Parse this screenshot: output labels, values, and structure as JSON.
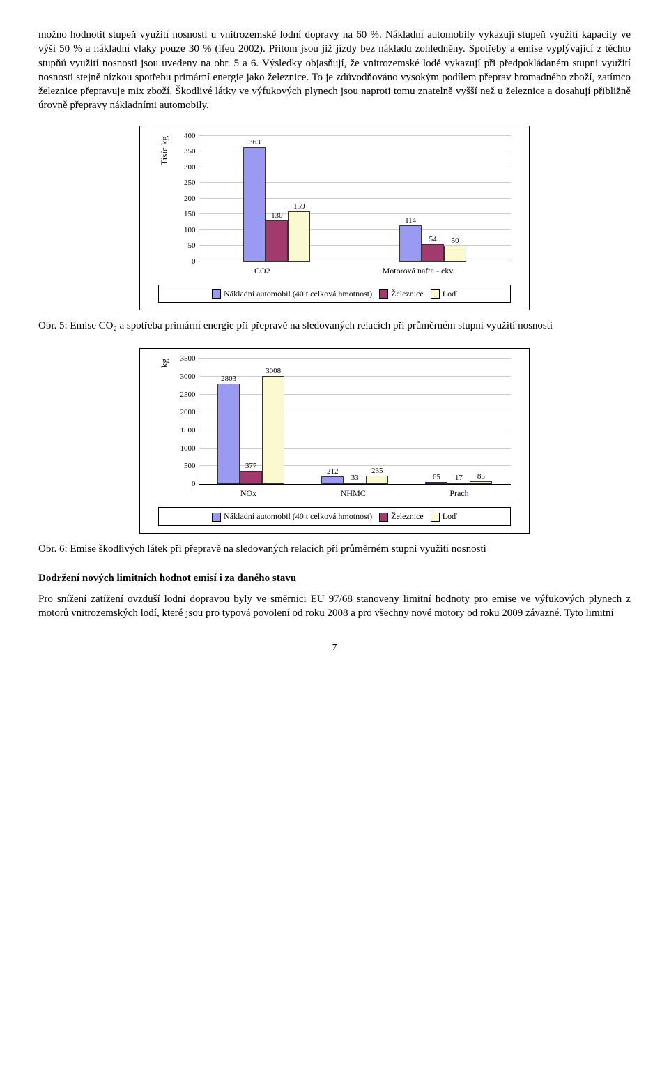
{
  "para1": "možno hodnotit stupeň využití nosnosti u vnitrozemské lodní dopravy na 60 %. Nákladní automobily vykazují  stupeň využití kapacity ve výši 50 % a nákladní vlaky pouze 30 % (ifeu 2002). Přitom jsou již jízdy bez nákladu zohledněny. Spotřeby a emise vyplývající z těchto stupňů využití nosnosti jsou uvedeny na obr. 5 a 6. Výsledky objasňují, že vnitrozemské lodě vykazují při předpokládaném stupni využití nosnosti stejně nízkou spotřebu primární energie jako železnice. To je zdůvodňováno vysokým podílem přeprav hromadného zboží, zatímco železnice přepravuje mix zboží. Škodlivé látky ve výfukových plynech jsou naproti tomu znatelně vyšší než u železnice a dosahují přibližně úrovně přepravy nákladními automobily.",
  "chart1": {
    "ylabel": "Tisíc kg",
    "ymax": 400,
    "ystep": 50,
    "cats": [
      "CO2",
      "Motorová nafta - ekv."
    ],
    "series": [
      {
        "label": "Nákladní automobil (40 t celková hmotnost)",
        "color": "#9a9af2",
        "values": [
          363,
          114
        ]
      },
      {
        "label": "Železnice",
        "color": "#a23b6d",
        "values": [
          130,
          54
        ]
      },
      {
        "label": "Loď",
        "color": "#fbf9cf",
        "values": [
          159,
          50
        ]
      }
    ]
  },
  "caption1": "Obr. 5: Emise CO₂ a spotřeba primární energie při přepravě na sledovaných relacích při průměrném stupni využití nosnosti",
  "chart2": {
    "ylabel": "kg",
    "ymax": 3500,
    "ystep": 500,
    "cats": [
      "NOx",
      "NHMC",
      "Prach"
    ],
    "series": [
      {
        "label": "Nákladní automobil (40 t celková hmotnost)",
        "color": "#9a9af2",
        "values": [
          2803,
          212,
          65
        ]
      },
      {
        "label": "Železnice",
        "color": "#a23b6d",
        "values": [
          377,
          33,
          17
        ]
      },
      {
        "label": "Loď",
        "color": "#fbf9cf",
        "values": [
          3008,
          235,
          85
        ]
      }
    ]
  },
  "caption2": "Obr. 6: Emise škodlivých látek při přepravě na sledovaných relacích při průměrném stupni využití nosnosti",
  "sectionHead": "Dodržení nových limitních hodnot emisí i za daného stavu",
  "para2": "Pro snížení zatížení ovzduší lodní dopravou byly ve směrnici EU 97/68 stanoveny limitní hodnoty pro emise ve výfukových plynech z motorů vnitrozemských lodí, které jsou pro typová povolení od roku 2008 a pro všechny nové motory od roku 2009 závazné. Tyto limitní",
  "pageNum": "7"
}
